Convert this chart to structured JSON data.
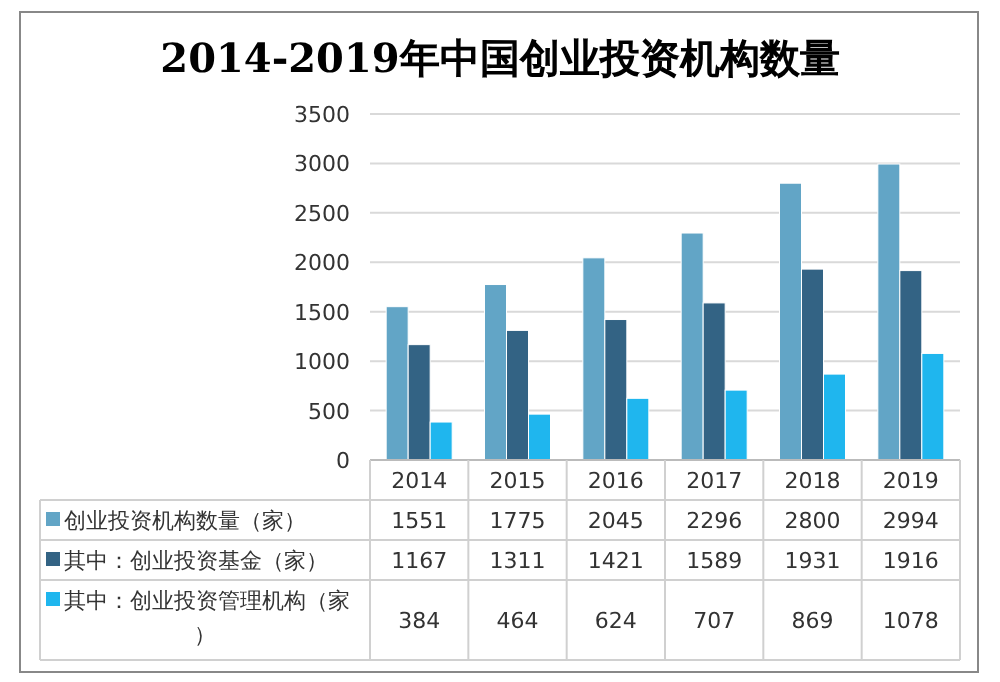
{
  "chart_data": {
    "type": "bar",
    "title": "2014-2019年中国创业投资机构数量",
    "categories": [
      "2014",
      "2015",
      "2016",
      "2017",
      "2018",
      "2019"
    ],
    "series": [
      {
        "name": "创业投资机构数量（家）",
        "color": "#62a5c6",
        "values": [
          1551,
          1775,
          2045,
          2296,
          2800,
          2994
        ]
      },
      {
        "name": "其中：创业投资基金（家）",
        "color": "#336384",
        "values": [
          1167,
          1311,
          1421,
          1589,
          1931,
          1916
        ]
      },
      {
        "name": "其中：创业投资管理机构（家）",
        "color": "#1fb6ee",
        "values": [
          384,
          464,
          624,
          707,
          869,
          1078
        ]
      }
    ],
    "ylim": [
      0,
      3500
    ],
    "yticks": [
      0,
      500,
      1000,
      1500,
      2000,
      2500,
      3000,
      3500
    ],
    "grid": "y",
    "legend": "bottom",
    "data_labels": true
  }
}
